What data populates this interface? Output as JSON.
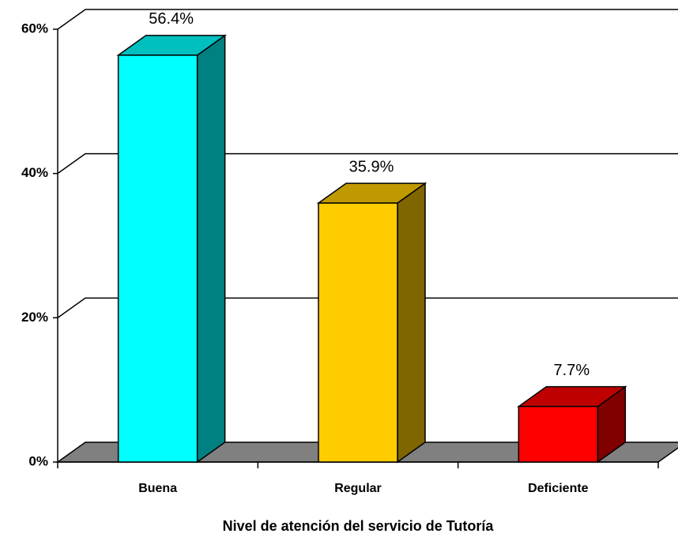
{
  "chart_data": {
    "type": "bar3d",
    "xlabel": "Nivel de atención del servicio de Tutoría",
    "categories": [
      "Buena",
      "Regular",
      "Deficiente"
    ],
    "values": [
      56.4,
      35.9,
      7.7
    ],
    "value_labels": [
      "56.4%",
      "35.9%",
      "7.7%"
    ],
    "colors": [
      "#00ffff",
      "#ffcc00",
      "#ff0000"
    ],
    "ylim": [
      0,
      60
    ],
    "yticks": [
      {
        "value": 0,
        "label": "0%"
      },
      {
        "value": 20,
        "label": "20%"
      },
      {
        "value": 40,
        "label": "40%"
      },
      {
        "value": 60,
        "label": "60%"
      }
    ],
    "grid": true
  }
}
